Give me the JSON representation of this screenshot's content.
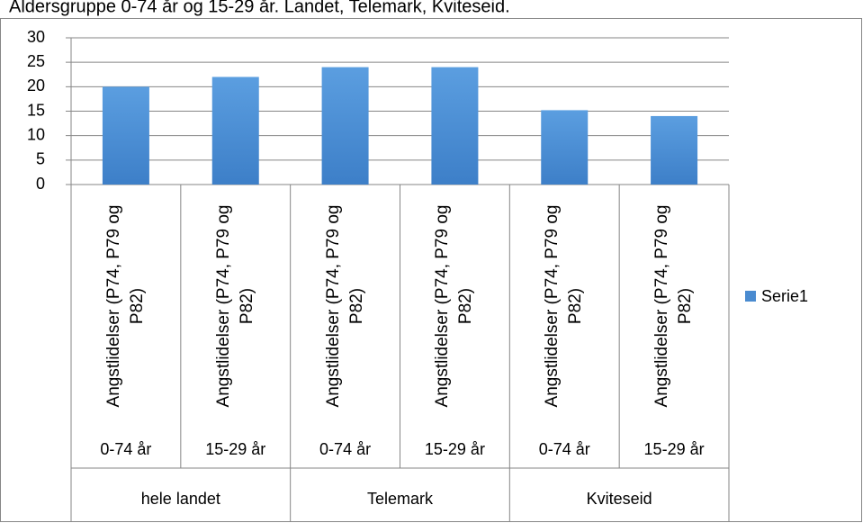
{
  "chart_data": {
    "type": "bar",
    "title": "Aldersgruppe 0-74 år og 15-29 år. Landet, Telemark, Kviteseid.",
    "categories": [
      "Angstlidelser (P74, P79 og P82)",
      "Angstlidelser (P74, P79 og P82)",
      "Angstlidelser (P74, P79 og P82)",
      "Angstlidelser (P74, P79 og P82)",
      "Angstlidelser (P74, P79 og P82)",
      "Angstlidelser (P74, P79 og P82)"
    ],
    "age_groups": [
      "0-74 år",
      "15-29 år",
      "0-74 år",
      "15-29 år",
      "0-74 år",
      "15-29 år"
    ],
    "regions": [
      "hele landet",
      "Telemark",
      "Kviteseid"
    ],
    "series": [
      {
        "name": "Serie1",
        "color": "#4a8bd0",
        "values": [
          20,
          22,
          24,
          24,
          15.2,
          14
        ]
      }
    ],
    "ylim": [
      0,
      30
    ],
    "yticks": [
      0,
      5,
      10,
      15,
      20,
      25,
      30
    ],
    "grid": true,
    "legend": "right"
  }
}
